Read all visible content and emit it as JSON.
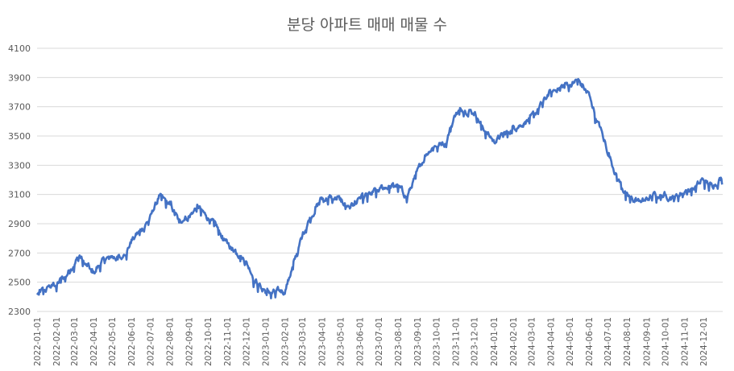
{
  "chart_data": {
    "type": "line",
    "title": "분당 아파트 매매 매물 수",
    "xlabel": "",
    "ylabel": "",
    "ylim": [
      2300,
      4100
    ],
    "yticks": [
      2300,
      2500,
      2700,
      2900,
      3100,
      3300,
      3500,
      3700,
      3900,
      4100
    ],
    "xticks": [
      "2022-01-01",
      "2022-02-01",
      "2022-03-01",
      "2022-04-01",
      "2022-05-01",
      "2022-06-01",
      "2022-07-01",
      "2022-08-01",
      "2022-09-01",
      "2022-10-01",
      "2022-11-01",
      "2022-12-01",
      "2023-01-01",
      "2023-02-01",
      "2023-03-01",
      "2023-04-01",
      "2023-05-01",
      "2023-06-01",
      "2023-07-01",
      "2023-08-01",
      "2023-09-01",
      "2023-10-01",
      "2023-11-01",
      "2023-12-01",
      "2024-01-01",
      "2024-02-01",
      "2024-03-01",
      "2024-04-01",
      "2024-05-01",
      "2024-06-01",
      "2024-07-01",
      "2024-08-01",
      "2024-09-01",
      "2024-10-01",
      "2024-11-01",
      "2024-12-01"
    ],
    "grid": true,
    "legend": "none",
    "color": "#4472c4",
    "series": [
      {
        "x": [
          "2022-01-01",
          "2022-01-15",
          "2022-02-01",
          "2022-02-15",
          "2022-03-01",
          "2022-03-10",
          "2022-03-20",
          "2022-04-01",
          "2022-04-15",
          "2022-05-01",
          "2022-05-15",
          "2022-06-01",
          "2022-06-15",
          "2022-07-01",
          "2022-07-15",
          "2022-08-01",
          "2022-08-15",
          "2022-09-01",
          "2022-09-15",
          "2022-10-01",
          "2022-10-15",
          "2022-11-01",
          "2022-11-15",
          "2022-12-01",
          "2022-12-15",
          "2023-01-01",
          "2023-01-15",
          "2023-02-01",
          "2023-02-15",
          "2023-03-01",
          "2023-03-15",
          "2023-04-01",
          "2023-04-15",
          "2023-05-01",
          "2023-05-15",
          "2023-06-01",
          "2023-06-15",
          "2023-07-01",
          "2023-07-15",
          "2023-08-01",
          "2023-08-15",
          "2023-09-01",
          "2023-09-15",
          "2023-10-01",
          "2023-10-15",
          "2023-11-01",
          "2023-11-15",
          "2023-12-01",
          "2023-12-15",
          "2024-01-01",
          "2024-01-15",
          "2024-02-01",
          "2024-02-15",
          "2024-03-01",
          "2024-03-15",
          "2024-04-01",
          "2024-04-15",
          "2024-05-01",
          "2024-05-15",
          "2024-06-01",
          "2024-06-15",
          "2024-07-01",
          "2024-07-15",
          "2024-08-01",
          "2024-08-15",
          "2024-09-01",
          "2024-09-15",
          "2024-10-01",
          "2024-10-15",
          "2024-11-01",
          "2024-11-15",
          "2024-12-01",
          "2024-12-15",
          "2024-12-31"
        ],
        "values": [
          2420,
          2450,
          2490,
          2540,
          2630,
          2680,
          2620,
          2560,
          2640,
          2680,
          2660,
          2780,
          2850,
          2940,
          3080,
          3040,
          2920,
          2950,
          3020,
          2940,
          2880,
          2760,
          2720,
          2640,
          2520,
          2440,
          2430,
          2440,
          2620,
          2820,
          2960,
          3070,
          3080,
          3060,
          3020,
          3060,
          3100,
          3130,
          3150,
          3160,
          3080,
          3250,
          3380,
          3440,
          3450,
          3650,
          3690,
          3660,
          3560,
          3460,
          3500,
          3560,
          3580,
          3620,
          3700,
          3800,
          3830,
          3860,
          3880,
          3780,
          3600,
          3400,
          3230,
          3090,
          3060,
          3060,
          3100,
          3100,
          3070,
          3130,
          3140,
          3200,
          3160,
          3220
        ]
      }
    ]
  }
}
